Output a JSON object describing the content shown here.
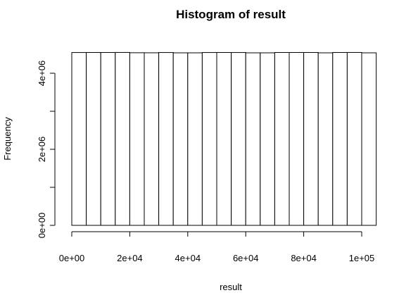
{
  "chart_data": {
    "type": "bar",
    "title": "Histogram of result",
    "xlabel": "result",
    "ylabel": "Frequency",
    "bin_width": 5000,
    "x_start": 0,
    "xlim": [
      0,
      110000
    ],
    "ylim": [
      0,
      4550000
    ],
    "x_ticks": [
      0,
      20000,
      40000,
      60000,
      80000,
      100000
    ],
    "x_tick_labels": [
      "0e+00",
      "2e+04",
      "4e+04",
      "6e+04",
      "8e+04",
      "1e+05"
    ],
    "y_ticks": [
      0,
      2000000,
      4000000
    ],
    "y_tick_labels": [
      "0e+00",
      "2e+06",
      "4e+06"
    ],
    "values": [
      4545000,
      4546000,
      4546000,
      4547000,
      4539000,
      4538000,
      4545000,
      4537000,
      4537000,
      4545000,
      4546000,
      4545000,
      4537000,
      4537000,
      4546000,
      4546000,
      4546000,
      4537000,
      4546000,
      4547000,
      4537000
    ],
    "grid": false,
    "legend": "none",
    "colors": {
      "bar_fill": "#ffffff",
      "bar_stroke": "#000000"
    }
  }
}
